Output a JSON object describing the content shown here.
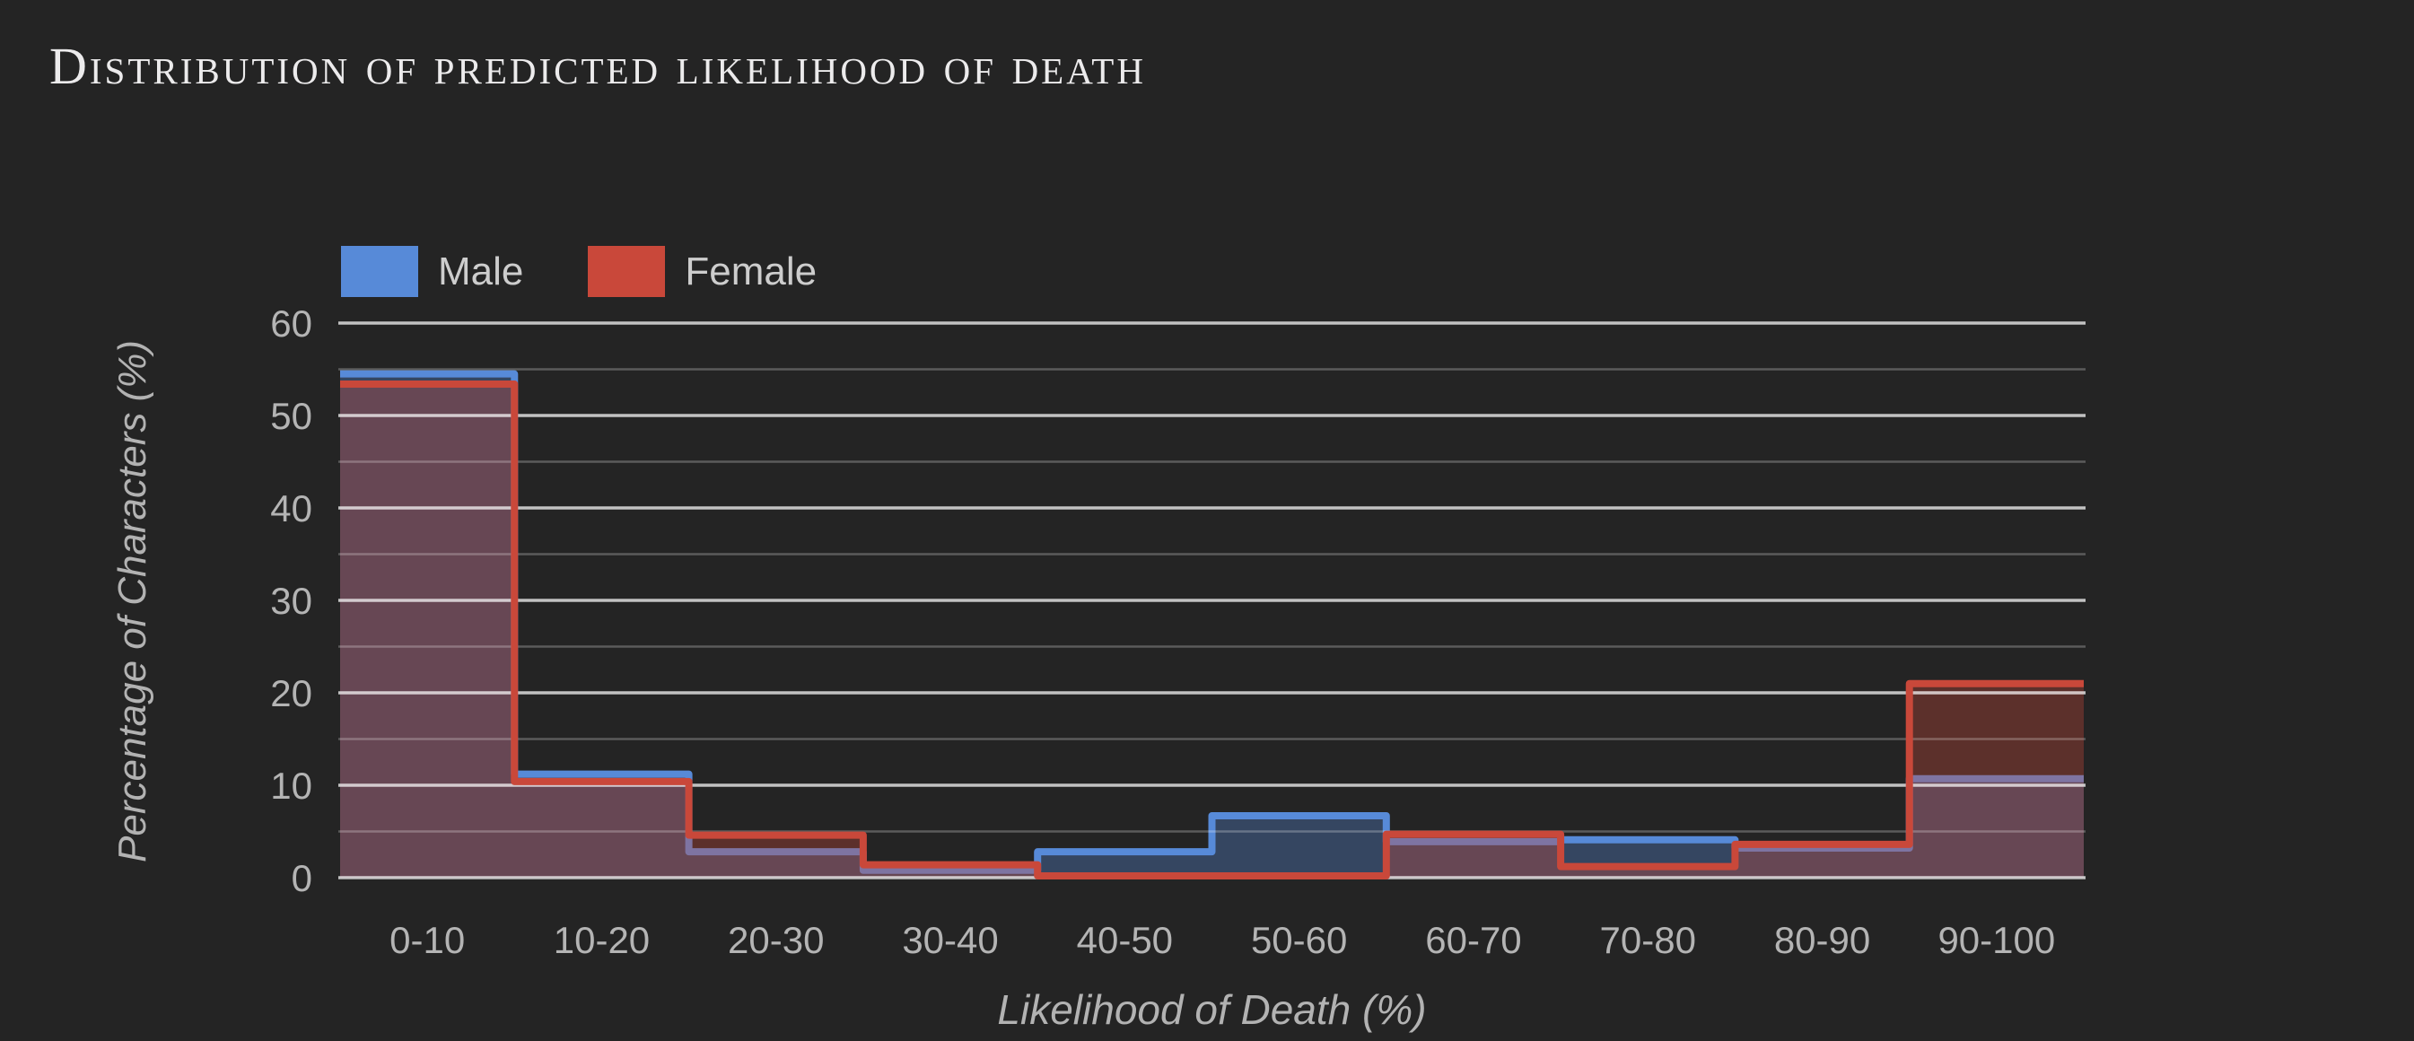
{
  "window": {
    "background": "#242424"
  },
  "header": {
    "title": "Distribution of predicted likelihood of death"
  },
  "legend": {
    "position": "top-left",
    "items": [
      {
        "label": "Male",
        "color": "#578ad8"
      },
      {
        "label": "Female",
        "color": "#c9483a"
      }
    ]
  },
  "axes": {
    "xlabel": "Likelihood of Death (%)",
    "ylabel": "Percentage of Characters (%)"
  },
  "chart_data": {
    "type": "area",
    "subtype": "stepped-histogram-outline",
    "title": "Distribution of predicted likelihood of death",
    "categories": [
      "0-10",
      "10-20",
      "20-30",
      "30-40",
      "40-50",
      "50-60",
      "60-70",
      "70-80",
      "80-90",
      "90-100"
    ],
    "series": [
      {
        "name": "Male",
        "color": "#578ad8",
        "values": [
          54.5,
          11.2,
          2.8,
          0.8,
          2.8,
          6.7,
          3.9,
          4.1,
          3.2,
          10.7
        ]
      },
      {
        "name": "Female",
        "color": "#c9483a",
        "values": [
          53.4,
          10.4,
          4.6,
          1.4,
          0.2,
          0.2,
          4.7,
          1.2,
          3.6,
          21.0
        ]
      }
    ],
    "xlabel": "Likelihood of Death (%)",
    "ylabel": "Percentage of Characters (%)",
    "ylim": [
      0,
      60
    ],
    "yticks": [
      0,
      10,
      20,
      30,
      40,
      50,
      60
    ],
    "minor_grid_step": 5,
    "grid": "horizontal",
    "legend_position": "top-left",
    "fill_opacity": 0.34,
    "line_width": 8,
    "major_grid_color": "rgba(255,255,255,0.72)",
    "minor_grid_color": "rgba(255,255,255,0.25)",
    "tick_color": "#b4b4b4"
  }
}
